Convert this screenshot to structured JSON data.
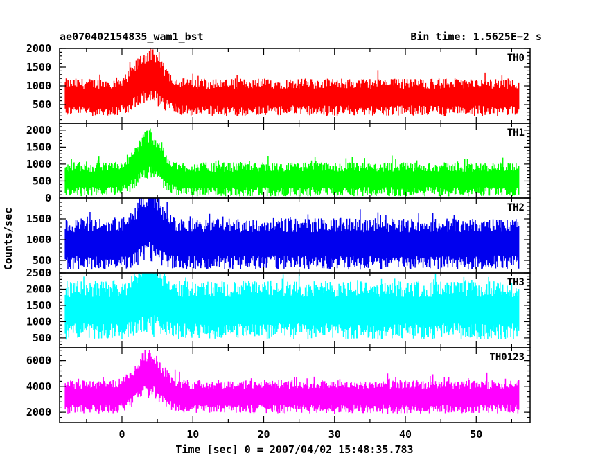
{
  "chart_data": {
    "type": "line",
    "title": "ae070402154835_wam1_bst",
    "subtitle": "Bin time: 1.5625E−2 s",
    "xlabel": "Time [sec] 0 = 2007/04/02 15:48:35.783",
    "ylabel": "Counts/sec",
    "xlim": [
      -8.8,
      57.6
    ],
    "x_ticks": [
      0,
      10,
      20,
      30,
      40,
      50
    ],
    "x_tick_labels": [
      "0",
      "10",
      "20",
      "30",
      "40",
      "50"
    ],
    "grid": false,
    "panels": [
      {
        "name": "TH0",
        "color": "#ff0000",
        "ylim": [
          0,
          2000
        ],
        "y_ticks": [
          500,
          1000,
          1500,
          2000
        ],
        "y_tick_labels": [
          "500",
          "1000",
          "1500",
          "2000"
        ],
        "x_range": [
          -8,
          56
        ],
        "baseline_mean": 700,
        "noise_half_range": 500,
        "burst_peak": 1750,
        "burst_center": 3.8,
        "burst_width": 2.5
      },
      {
        "name": "TH1",
        "color": "#00ff00",
        "ylim": [
          0,
          2200
        ],
        "y_ticks": [
          0,
          500,
          1000,
          1500,
          2000
        ],
        "y_tick_labels": [
          "0",
          "500",
          "1000",
          "1500",
          "2000"
        ],
        "x_range": [
          -8,
          56
        ],
        "baseline_mean": 550,
        "noise_half_range": 500,
        "burst_peak": 1900,
        "burst_center": 3.8,
        "burst_width": 2.3
      },
      {
        "name": "TH2",
        "color": "#0000ee",
        "ylim": [
          200,
          2000
        ],
        "y_ticks": [
          500,
          1000,
          1500
        ],
        "y_tick_labels": [
          "500",
          "1000",
          "1500"
        ],
        "x_range": [
          -8,
          56
        ],
        "baseline_mean": 900,
        "noise_half_range": 620,
        "burst_peak": 1800,
        "burst_center": 4.0,
        "burst_width": 2.0
      },
      {
        "name": "TH3",
        "color": "#00ffff",
        "ylim": [
          200,
          2500
        ],
        "y_ticks": [
          500,
          1000,
          1500,
          2000,
          2500
        ],
        "y_tick_labels": [
          "500",
          "1000",
          "1500",
          "2000",
          "2500"
        ],
        "x_range": [
          -8,
          56
        ],
        "baseline_mean": 1350,
        "noise_half_range": 900,
        "burst_peak": 2300,
        "burst_center": 4.0,
        "burst_width": 2.0
      },
      {
        "name": "TH0123",
        "color": "#ff00ff",
        "ylim": [
          1200,
          7000
        ],
        "y_ticks": [
          2000,
          4000,
          6000
        ],
        "y_tick_labels": [
          "2000",
          "4000",
          "6000"
        ],
        "x_range": [
          -8,
          56
        ],
        "baseline_mean": 3200,
        "noise_half_range": 1300,
        "burst_peak": 6500,
        "burst_center": 3.8,
        "burst_width": 2.5
      }
    ]
  }
}
